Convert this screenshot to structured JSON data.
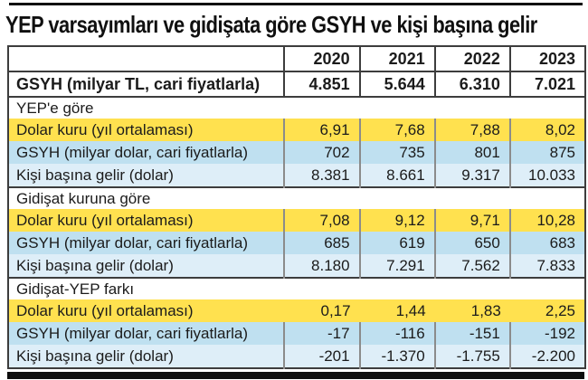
{
  "title": "YEP varsayımları ve gidişata göre GSYH ve kişi başına gelir",
  "colors": {
    "row_yellow": "#ffe14f",
    "row_blue": "#bfe0f0",
    "row_light_blue": "#deeef8",
    "border_dark": "#3d3d3d",
    "divider_gray": "#8b8b8b",
    "text": "#1b1b1b"
  },
  "chart_data": {
    "type": "table",
    "title": "YEP varsayımları ve gidişata göre GSYH ve kişi başına gelir",
    "columns": [
      "2020",
      "2021",
      "2022",
      "2023"
    ],
    "gsyh_tl": {
      "label": "GSYH (milyar TL, cari fiyatlarla)",
      "values": [
        "4.851",
        "5.644",
        "6.310",
        "7.021"
      ]
    },
    "sections": [
      {
        "header": "YEP'e göre",
        "rows": [
          {
            "label": "Dolar kuru (yıl ortalaması)",
            "values": [
              "6,91",
              "7,68",
              "7,88",
              "8,02"
            ]
          },
          {
            "label": "GSYH (milyar dolar, cari fiyatlarla)",
            "values": [
              "702",
              "735",
              "801",
              "875"
            ]
          },
          {
            "label": "Kişi başına gelir (dolar)",
            "values": [
              "8.381",
              "8.661",
              "9.317",
              "10.033"
            ]
          }
        ]
      },
      {
        "header": "Gidişat kuruna göre",
        "rows": [
          {
            "label": "Dolar kuru (yıl ortalaması)",
            "values": [
              "7,08",
              "9,12",
              "9,71",
              "10,28"
            ]
          },
          {
            "label": "GSYH (milyar dolar, cari fiyatlarla)",
            "values": [
              "685",
              "619",
              "650",
              "683"
            ]
          },
          {
            "label": "Kişi başına gelir (dolar)",
            "values": [
              "8.180",
              "7.291",
              "7.562",
              "7.833"
            ]
          }
        ]
      },
      {
        "header": "Gidişat-YEP farkı",
        "rows": [
          {
            "label": "Dolar kuru (yıl ortalaması)",
            "values": [
              "0,17",
              "1,44",
              "1,83",
              "2,25"
            ]
          },
          {
            "label": "GSYH (milyar dolar, cari fiyatlarla)",
            "values": [
              "-17",
              "-116",
              "-151",
              "-192"
            ]
          },
          {
            "label": "Kişi başına gelir (dolar)",
            "values": [
              "-201",
              "-1.370",
              "-1.755",
              "-2.200"
            ]
          }
        ]
      }
    ]
  }
}
